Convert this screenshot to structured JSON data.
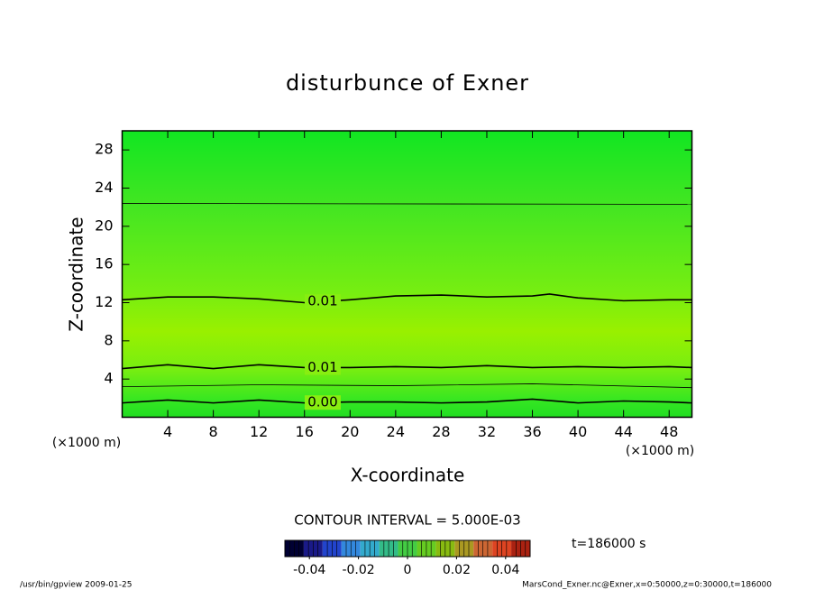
{
  "chart_data": {
    "type": "contour",
    "title": "disturbunce of Exner",
    "x_label": "X-coordinate",
    "y_label": "Z-coordinate",
    "x_unit_label": "(×1000 m)",
    "xlim": [
      0,
      50
    ],
    "xticks": [
      4,
      8,
      12,
      16,
      20,
      24,
      28,
      32,
      36,
      40,
      44,
      48
    ],
    "ylim": [
      0,
      30
    ],
    "yticks": [
      4,
      8,
      12,
      16,
      20,
      24,
      28
    ],
    "shading": [
      {
        "z": 0,
        "color": "#22dd22"
      },
      {
        "z": 1.6,
        "color": "#33e622"
      },
      {
        "z": 5,
        "color": "#77ee11"
      },
      {
        "z": 9,
        "color": "#99f000"
      },
      {
        "z": 13,
        "color": "#77ee11"
      },
      {
        "z": 22,
        "color": "#44e622"
      },
      {
        "z": 30,
        "color": "#11e622"
      }
    ],
    "contours": [
      {
        "x": [
          0,
          50
        ],
        "z": [
          22.4,
          22.3
        ],
        "width": 0.8
      },
      {
        "label": "0.01",
        "x": [
          0,
          4,
          8,
          12,
          16,
          20,
          24,
          28,
          32,
          36,
          37.5,
          40,
          44,
          48,
          50
        ],
        "z": [
          12.3,
          12.6,
          12.6,
          12.4,
          12.0,
          12.3,
          12.7,
          12.8,
          12.6,
          12.7,
          12.9,
          12.5,
          12.2,
          12.3,
          12.3
        ],
        "width": 1.6
      },
      {
        "label": "0.01",
        "x": [
          0,
          4,
          8,
          12,
          16,
          20,
          24,
          28,
          32,
          36,
          40,
          44,
          48,
          50
        ],
        "z": [
          5.1,
          5.5,
          5.1,
          5.5,
          5.2,
          5.2,
          5.3,
          5.2,
          5.4,
          5.2,
          5.3,
          5.2,
          5.3,
          5.2
        ],
        "width": 1.6
      },
      {
        "x": [
          0,
          12,
          24,
          36,
          50
        ],
        "z": [
          3.2,
          3.4,
          3.3,
          3.5,
          3.1
        ],
        "width": 0.8
      },
      {
        "label": "0.00",
        "x": [
          0,
          4,
          8,
          12,
          16,
          20,
          24,
          28,
          32,
          36,
          40,
          44,
          48,
          50
        ],
        "z": [
          1.5,
          1.8,
          1.5,
          1.8,
          1.5,
          1.6,
          1.6,
          1.5,
          1.6,
          1.9,
          1.5,
          1.7,
          1.6,
          1.5
        ],
        "width": 1.6
      }
    ],
    "contour_interval": "CONTOUR INTERVAL = 5.000E-03",
    "time_label": "t=186000 s",
    "colorbar": {
      "clim": [
        -0.05,
        0.05
      ],
      "ticks": [
        -0.04,
        -0.02,
        0,
        0.02,
        0.04
      ],
      "colors": [
        "#000033",
        "#1a1a88",
        "#2244cc",
        "#3388dd",
        "#33aacc",
        "#33bb88",
        "#44cc44",
        "#66cc22",
        "#88bb11",
        "#aa9922",
        "#cc6633",
        "#dd4422",
        "#aa2211"
      ]
    },
    "footer_left": "/usr/bin/gpview  2009-01-25",
    "footer_right": "MarsCond_Exner.nc@Exner,x=0:50000,z=0:30000,t=186000"
  }
}
